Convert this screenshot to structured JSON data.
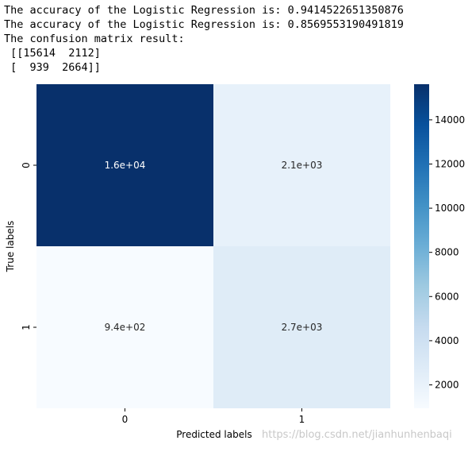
{
  "console": {
    "lines": [
      "The accuracy of the Logistic Regression is: 0.9414522651350876",
      "The accuracy of the Logistic Regression is: 0.8569553190491819",
      "The confusion matrix result:",
      " [[15614  2112]",
      " [  939  2664]]"
    ]
  },
  "chart_data": {
    "type": "heatmap",
    "x_categories": [
      "0",
      "1"
    ],
    "y_categories": [
      "0",
      "1"
    ],
    "values": [
      [
        15614,
        2112
      ],
      [
        939,
        2664
      ]
    ],
    "annotations": [
      [
        "1.6e+04",
        "2.1e+03"
      ],
      [
        "9.4e+02",
        "2.7e+03"
      ]
    ],
    "xlabel": "Predicted labels",
    "ylabel": "True labels",
    "colormap": "Blues",
    "vmin": 939,
    "vmax": 15614,
    "colorbar_ticks": [
      2000,
      4000,
      6000,
      8000,
      10000,
      12000,
      14000
    ],
    "colorbar_tick_labels": [
      "2000",
      "4000",
      "6000",
      "8000",
      "10000",
      "12000",
      "14000"
    ]
  },
  "watermark": "https://blog.csdn.net/jianhunhenbaqi"
}
